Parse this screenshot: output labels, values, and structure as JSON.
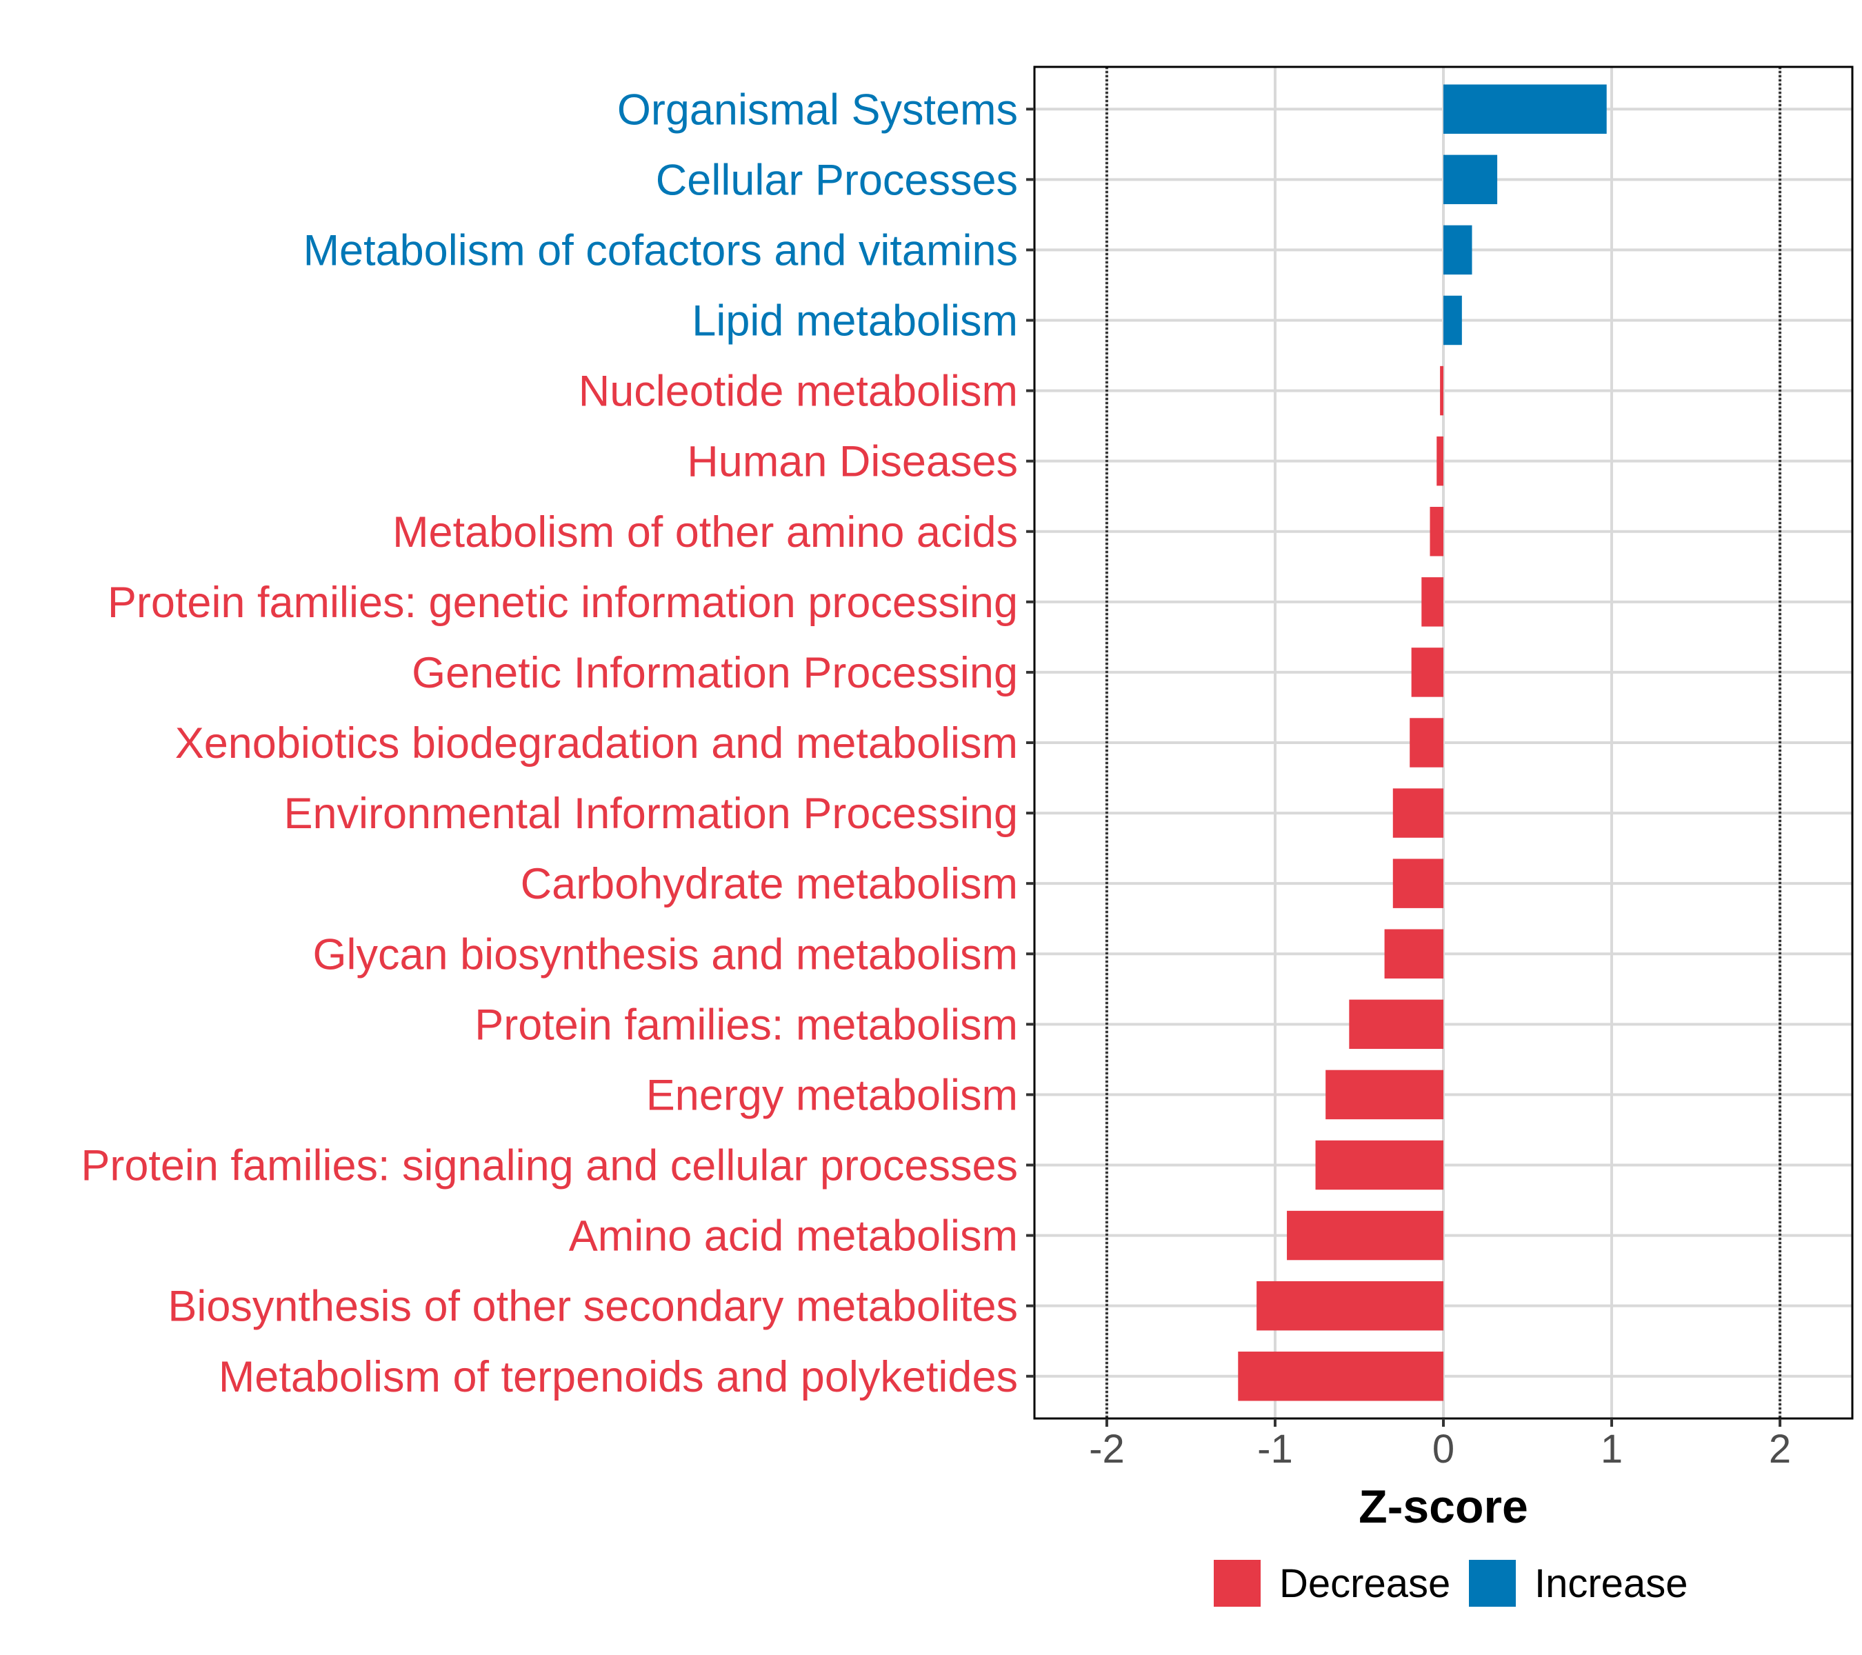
{
  "chart_data": {
    "type": "bar",
    "orientation": "horizontal",
    "xlabel": "Z-score",
    "xlim": [
      -2.43,
      2.43
    ],
    "xticks": [
      -2,
      -1,
      0,
      1,
      2
    ],
    "tick_labels": [
      "-2",
      "-1",
      "0",
      "1",
      "2"
    ],
    "reference_lines": [
      -2,
      2
    ],
    "grid": true,
    "legend_position": "bottom",
    "categories": [
      "Organismal Systems",
      "Cellular Processes",
      "Metabolism of cofactors and vitamins",
      "Lipid metabolism",
      "Nucleotide metabolism",
      "Human Diseases",
      "Metabolism of other amino acids",
      "Protein families: genetic information processing",
      "Genetic Information Processing",
      "Xenobiotics biodegradation and metabolism",
      "Environmental Information Processing",
      "Carbohydrate metabolism",
      "Glycan biosynthesis and metabolism",
      "Protein families: metabolism",
      "Energy metabolism",
      "Protein families: signaling and cellular processes",
      "Amino acid metabolism",
      "Biosynthesis of other secondary metabolites",
      "Metabolism of terpenoids and polyketides"
    ],
    "values": [
      0.97,
      0.32,
      0.17,
      0.11,
      -0.02,
      -0.04,
      -0.08,
      -0.13,
      -0.19,
      -0.2,
      -0.3,
      -0.3,
      -0.35,
      -0.56,
      -0.7,
      -0.76,
      -0.93,
      -1.11,
      -1.22
    ],
    "groups": [
      "Increase",
      "Increase",
      "Increase",
      "Increase",
      "Decrease",
      "Decrease",
      "Decrease",
      "Decrease",
      "Decrease",
      "Decrease",
      "Decrease",
      "Decrease",
      "Decrease",
      "Decrease",
      "Decrease",
      "Decrease",
      "Decrease",
      "Decrease",
      "Decrease"
    ],
    "legend": [
      {
        "name": "Decrease",
        "color": "#E63946"
      },
      {
        "name": "Increase",
        "color": "#0077B6"
      }
    ]
  },
  "colors": {
    "decrease": "#E63946",
    "increase": "#0077B6",
    "grid": "#d9d9d9",
    "panel_border": "#000000"
  }
}
